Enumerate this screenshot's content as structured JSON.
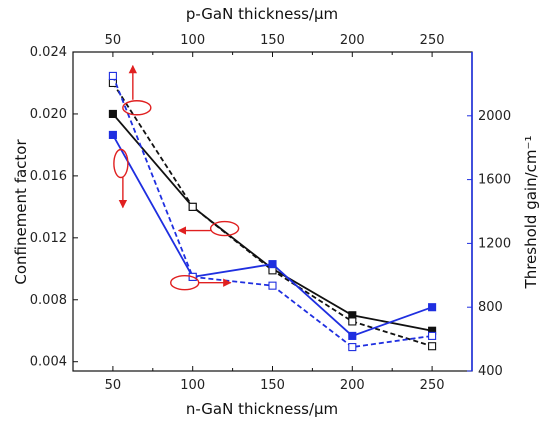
{
  "chart_data": {
    "type": "line",
    "top_xlabel": "p-GaN thickness/μm",
    "xlabel": "n-GaN thickness/μm",
    "ylabel_left": "Confinement factor",
    "ylabel_right": "Threshold gain/cm⁻¹",
    "x_ticks": [
      50,
      100,
      150,
      200,
      250
    ],
    "xlim": [
      25,
      275
    ],
    "ylim_left": [
      0.0034,
      0.024
    ],
    "ylim_right": [
      400,
      2400
    ],
    "y_ticks_left": [
      "0.004",
      "0.008",
      "0.012",
      "0.016",
      "0.020",
      "0.024"
    ],
    "y_ticks_right": [
      "400",
      "800",
      "1200",
      "1600",
      "2000"
    ],
    "colors": {
      "black_series": "#111111",
      "blue_series": "#1f2fe0",
      "right_axis": "#1f2fe0",
      "annotation": "#e02020"
    },
    "series": [
      {
        "axis": "left",
        "color": "black",
        "dash": "solid",
        "marker": "filled-square",
        "x": [
          50,
          100,
          150,
          200,
          250
        ],
        "values": [
          0.02,
          0.014,
          0.01,
          0.007,
          0.006
        ]
      },
      {
        "axis": "left",
        "color": "black",
        "dash": "dashed",
        "marker": "open-square",
        "x": [
          50,
          100,
          150,
          200,
          250
        ],
        "values": [
          0.022,
          0.014,
          0.0099,
          0.0066,
          0.005
        ]
      },
      {
        "axis": "right",
        "color": "blue",
        "dash": "solid",
        "marker": "filled-square",
        "x": [
          50,
          100,
          150,
          200,
          250
        ],
        "values": [
          1880,
          990,
          1070,
          620,
          800
        ]
      },
      {
        "axis": "right",
        "color": "blue",
        "dash": "dashed",
        "marker": "open-square",
        "x": [
          50,
          100,
          150,
          200,
          250
        ],
        "values": [
          2250,
          990,
          935,
          550,
          620
        ]
      }
    ],
    "annotations": [
      {
        "kind": "ellipse-arrow",
        "x": 65,
        "y_left": 0.0204,
        "arrow": "up"
      },
      {
        "kind": "ellipse-arrow",
        "x": 55,
        "y_left": 0.0168,
        "arrow": "down"
      },
      {
        "kind": "ellipse-arrow",
        "x": 120,
        "y_left": 0.0126,
        "arrow": "left"
      },
      {
        "kind": "ellipse-arrow",
        "x": 95,
        "y_left": 0.0091,
        "arrow": "right"
      }
    ]
  }
}
